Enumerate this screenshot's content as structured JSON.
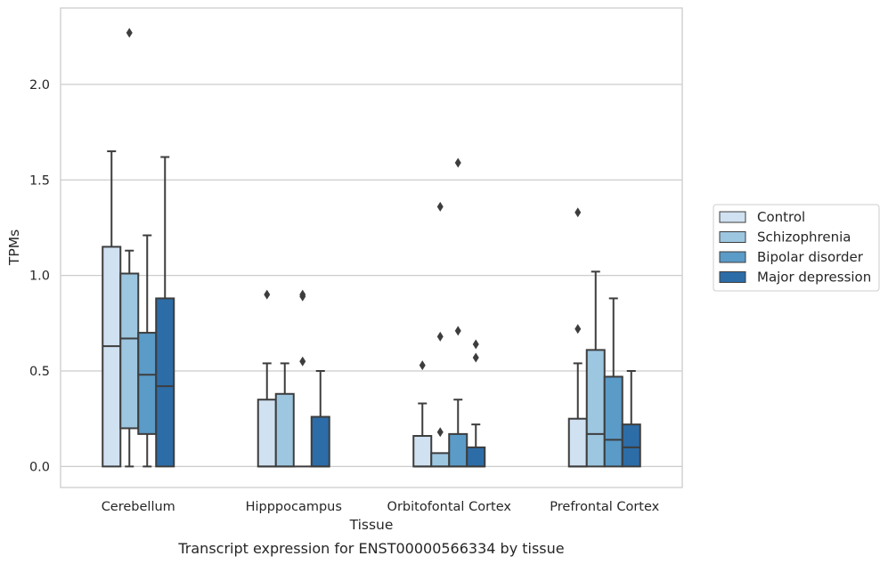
{
  "chart_data": {
    "type": "box",
    "title": "",
    "caption": "Transcript expression for ENST00000566334 by tissue",
    "xlabel": "Tissue",
    "ylabel": "TPMs",
    "ylim": [
      -0.11,
      2.4
    ],
    "yticks": [
      "0.0",
      "0.5",
      "1.0",
      "1.5",
      "2.0"
    ],
    "ytick_values": [
      0,
      0.5,
      1.0,
      1.5,
      2.0
    ],
    "grid": "horizontal",
    "legend_position": "right",
    "categories": [
      "Cerebellum",
      "Hipppocampus",
      "Orbitofontal Cortex",
      "Prefrontal Cortex"
    ],
    "series": [
      {
        "name": "Control",
        "color": "#d0e1f1",
        "boxes": [
          {
            "q1": 0,
            "median": 0.63,
            "q3": 1.15,
            "whisker_low": 0,
            "whisker_high": 1.65,
            "outliers": []
          },
          {
            "q1": 0,
            "median": 0,
            "q3": 0.35,
            "whisker_low": 0,
            "whisker_high": 0.54,
            "outliers": [
              0.9
            ]
          },
          {
            "q1": 0,
            "median": 0,
            "q3": 0.16,
            "whisker_low": 0,
            "whisker_high": 0.33,
            "outliers": [
              0.53
            ]
          },
          {
            "q1": 0,
            "median": 0,
            "q3": 0.25,
            "whisker_low": 0,
            "whisker_high": 0.54,
            "outliers": [
              0.72,
              1.33
            ]
          }
        ]
      },
      {
        "name": "Schizophrenia",
        "color": "#9dc6e0",
        "boxes": [
          {
            "q1": 0.2,
            "median": 0.67,
            "q3": 1.01,
            "whisker_low": 0,
            "whisker_high": 1.13,
            "outliers": [
              2.27
            ]
          },
          {
            "q1": 0,
            "median": 0,
            "q3": 0.38,
            "whisker_low": 0,
            "whisker_high": 0.54,
            "outliers": []
          },
          {
            "q1": 0,
            "median": 0,
            "q3": 0.07,
            "whisker_low": 0,
            "whisker_high": 0.07,
            "outliers": [
              0.18,
              0.68,
              1.36
            ]
          },
          {
            "q1": 0,
            "median": 0.17,
            "q3": 0.61,
            "whisker_low": 0,
            "whisker_high": 1.02,
            "outliers": []
          }
        ]
      },
      {
        "name": "Bipolar disorder",
        "color": "#5a9bc8",
        "boxes": [
          {
            "q1": 0.17,
            "median": 0.48,
            "q3": 0.7,
            "whisker_low": 0,
            "whisker_high": 1.21,
            "outliers": []
          },
          {
            "q1": 0,
            "median": 0,
            "q3": 0,
            "whisker_low": 0,
            "whisker_high": 0,
            "outliers": [
              0.55,
              0.89,
              0.9
            ]
          },
          {
            "q1": 0,
            "median": 0,
            "q3": 0.17,
            "whisker_low": 0,
            "whisker_high": 0.35,
            "outliers": [
              0.71,
              1.59
            ]
          },
          {
            "q1": 0,
            "median": 0.14,
            "q3": 0.47,
            "whisker_low": 0,
            "whisker_high": 0.88,
            "outliers": []
          }
        ]
      },
      {
        "name": "Major depression",
        "color": "#2c6da8",
        "boxes": [
          {
            "q1": 0,
            "median": 0.42,
            "q3": 0.88,
            "whisker_low": 0,
            "whisker_high": 1.62,
            "outliers": []
          },
          {
            "q1": 0,
            "median": 0,
            "q3": 0.26,
            "whisker_low": 0,
            "whisker_high": 0.5,
            "outliers": []
          },
          {
            "q1": 0,
            "median": 0,
            "q3": 0.1,
            "whisker_low": 0,
            "whisker_high": 0.22,
            "outliers": [
              0.57,
              0.64
            ]
          },
          {
            "q1": 0,
            "median": 0.1,
            "q3": 0.22,
            "whisker_low": 0,
            "whisker_high": 0.5,
            "outliers": []
          }
        ]
      }
    ]
  }
}
